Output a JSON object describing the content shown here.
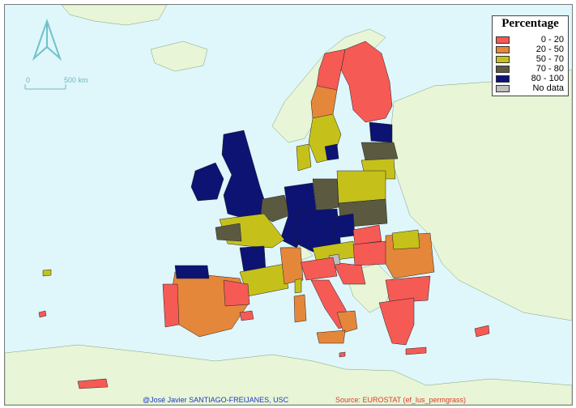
{
  "legend": {
    "title": "Percentage",
    "items": [
      {
        "label": "0 - 20",
        "color": "#f55a55"
      },
      {
        "label": "20 - 50",
        "color": "#e4873a"
      },
      {
        "label": "50 - 70",
        "color": "#c5c11a"
      },
      {
        "label": "70 - 80",
        "color": "#5b5a41"
      },
      {
        "label": "80 - 100",
        "color": "#0c1373"
      },
      {
        "label": "No data",
        "color": "#bfbfbf"
      }
    ]
  },
  "scale_bar": {
    "zero": "0",
    "max": "500 km"
  },
  "north_arrow": {
    "icon": "north-arrow-icon"
  },
  "credits": {
    "author": "@José Javier SANTIAGO-FREIJANES, USC",
    "source": "Source: EUROSTAT (ef_lus_permgrass)"
  },
  "colors": {
    "sea": "#dff6fb",
    "non_eu_land": "#e8f5d6",
    "border": "#222222"
  }
}
